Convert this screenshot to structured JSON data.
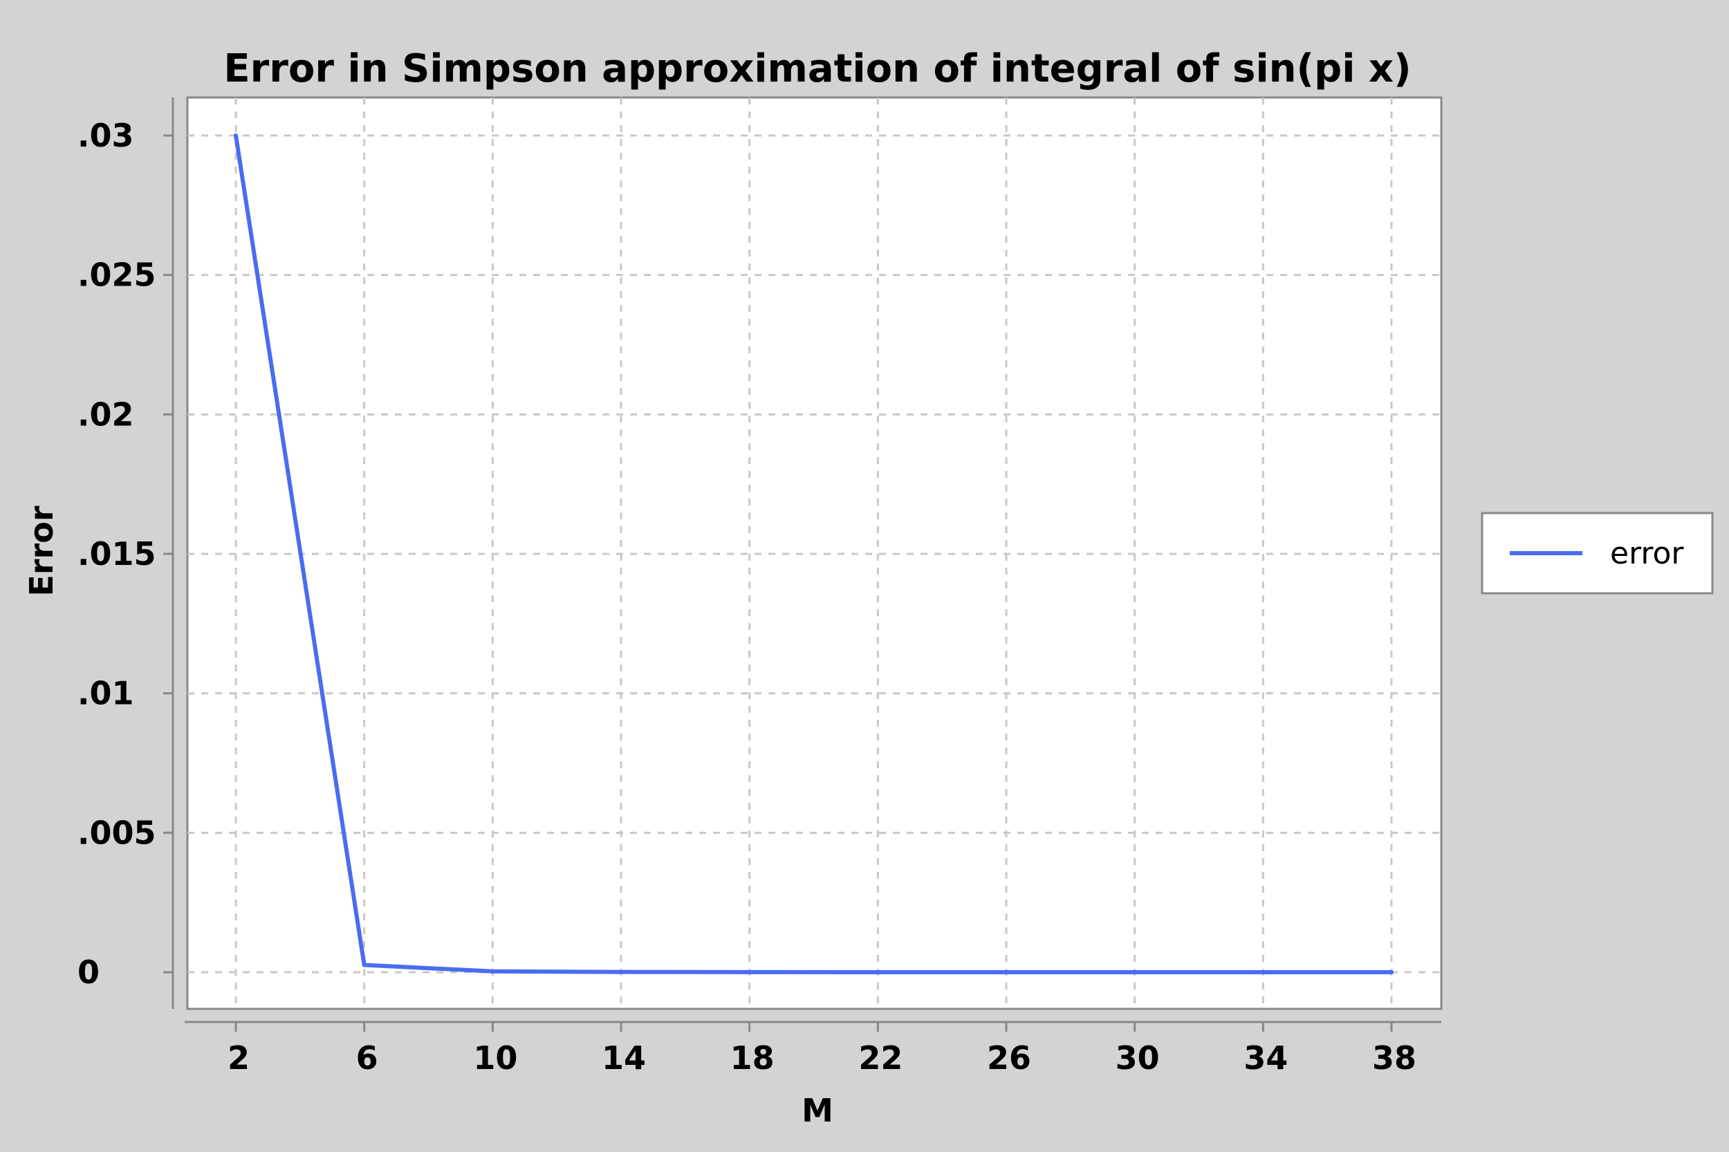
{
  "chart_data": {
    "type": "line",
    "title": "Error in Simpson approximation of integral of sin(pi x)",
    "xlabel": "M",
    "ylabel": "Error",
    "x": [
      2,
      6,
      10,
      14,
      18,
      22,
      26,
      30,
      34,
      38
    ],
    "x_ticks": [
      "2",
      "6",
      "10",
      "14",
      "18",
      "22",
      "26",
      "30",
      "34",
      "38"
    ],
    "y_ticks": [
      {
        "value": 0,
        "label": "0"
      },
      {
        "value": 0.005,
        "label": ".005"
      },
      {
        "value": 0.01,
        "label": ".01"
      },
      {
        "value": 0.015,
        "label": ".015"
      },
      {
        "value": 0.02,
        "label": ".02"
      },
      {
        "value": 0.025,
        "label": ".025"
      },
      {
        "value": 0.03,
        "label": ".03"
      }
    ],
    "ylim": [
      0,
      0.03
    ],
    "xlim": [
      2,
      38
    ],
    "grid": true,
    "legend_position": "right",
    "series": [
      {
        "name": "error",
        "color": "#4a6cf0",
        "values": [
          0.03,
          0.00026,
          3e-05,
          8e-06,
          3e-06,
          1e-06,
          6e-07,
          4e-07,
          2e-07,
          1e-07
        ]
      }
    ]
  }
}
